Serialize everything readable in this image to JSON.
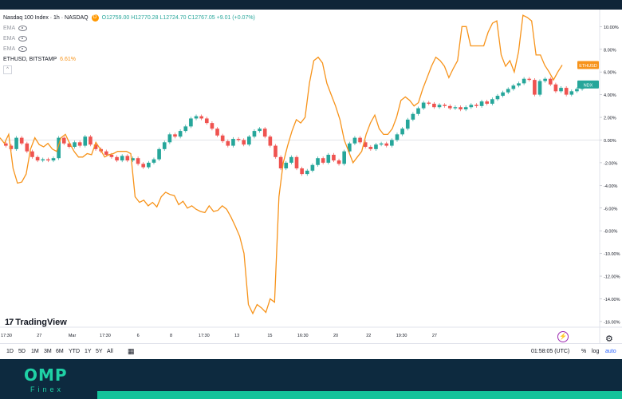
{
  "legend": {
    "title": "Nasdaq 100 Index · 1h · NASDAQ",
    "badge": "D",
    "ohlc": "O12759.00 H12770.28 L12724.70 C12767.05 +9.01 (+0.07%)",
    "ema_labels": [
      "EMA",
      "EMA",
      "EMA"
    ],
    "compare_symbol": "ETHUSD, BITSTAMP",
    "compare_value": "6.61%"
  },
  "logo": {
    "text": "TradingView",
    "mark": "17"
  },
  "price_tags": {
    "eth": "ETHUSD",
    "ndx": "NDX"
  },
  "toolbar": {
    "timeframes": [
      "1D",
      "5D",
      "1M",
      "3M",
      "6M",
      "YTD",
      "1Y",
      "5Y",
      "All"
    ],
    "time": "01:58:05 (UTC)",
    "percent": "%",
    "log": "log",
    "auto": "auto"
  },
  "footer": {
    "brand": "OMP",
    "sub": "Finex"
  },
  "colors": {
    "up": "#26a69a",
    "down": "#ef5350",
    "eth_line": "#f7931a",
    "ndx_tag": "#26a69a",
    "footer_bg": "#0d2a3f",
    "accent_bar": "#14c29a"
  },
  "chart_data": {
    "type": "line",
    "y_unit": "%",
    "ylim": [
      -16.5,
      11.5
    ],
    "y_ticks": [
      10,
      8,
      6,
      4,
      2,
      0,
      -2,
      -4,
      -6,
      -8,
      -10,
      -12,
      -14,
      -16
    ],
    "y_tick_labels": [
      "10.00%",
      "8.00%",
      "6.00%",
      "4.00%",
      "2.00%",
      "0.00%",
      "-2.00%",
      "-4.00%",
      "-6.00%",
      "-8.00%",
      "-10.00%",
      "-12.00%",
      "-14.00%",
      "-16.00%"
    ],
    "x_tick_labels": [
      "17:30",
      "27",
      "Mar",
      "17:30",
      "6",
      "8",
      "17:30",
      "13",
      "15",
      "16:30",
      "20",
      "22",
      "19:30",
      "27"
    ],
    "series": [
      {
        "name": "ETHUSD",
        "kind": "line",
        "values": [
          0.2,
          -0.3,
          0.5,
          -2.5,
          -3.8,
          -3.7,
          -3.0,
          -0.8,
          0.2,
          -0.4,
          -0.6,
          -0.3,
          -0.8,
          -1.0,
          0.2,
          0.5,
          -0.3,
          -1.0,
          -1.5,
          -1.5,
          -1.2,
          -1.3,
          -0.2,
          -0.8,
          -1.5,
          -1.3,
          -1.2,
          -1.0,
          -1.0,
          -1.0,
          -1.2,
          -5.0,
          -5.5,
          -5.3,
          -5.8,
          -5.5,
          -5.9,
          -5.0,
          -4.6,
          -4.8,
          -4.9,
          -5.7,
          -5.4,
          -6.0,
          -5.8,
          -6.1,
          -6.3,
          -6.4,
          -5.8,
          -6.3,
          -6.2,
          -5.8,
          -6.1,
          -6.8,
          -7.6,
          -8.5,
          -10.0,
          -14.5,
          -15.3,
          -14.5,
          -14.8,
          -15.2,
          -14.0,
          -14.3,
          -5.0,
          -2.0,
          -0.5,
          0.8,
          1.8,
          1.5,
          2.0,
          5.0,
          7.0,
          7.3,
          6.8,
          5.0,
          4.0,
          3.0,
          1.8,
          0.0,
          -1.0,
          -2.0,
          -1.5,
          -1.0,
          0.5,
          1.5,
          2.2,
          1.0,
          0.5,
          0.5,
          1.0,
          2.0,
          3.5,
          3.8,
          3.5,
          3.0,
          3.3,
          4.5,
          5.5,
          6.5,
          7.3,
          7.0,
          6.5,
          5.5,
          6.3,
          7.0,
          10.0,
          10.0,
          8.3,
          8.3,
          8.3,
          8.3,
          9.5,
          10.3,
          10.5,
          7.5,
          6.5,
          7.0,
          6.0,
          7.8,
          11.0,
          10.8,
          10.5,
          7.5,
          7.5,
          6.6,
          6.0,
          5.3,
          6.0,
          6.61
        ]
      },
      {
        "name": "NDX",
        "kind": "candles",
        "closes": [
          -0.5,
          -0.8,
          0.2,
          -0.3,
          -1.0,
          -1.5,
          -1.8,
          -1.7,
          -1.8,
          -1.6,
          0.2,
          -0.3,
          -0.6,
          -0.2,
          -0.5,
          0.3,
          -0.4,
          -0.8,
          -1.0,
          -1.3,
          -1.5,
          -1.8,
          -1.4,
          -1.8,
          -1.6,
          -2.1,
          -2.4,
          -2.0,
          -1.7,
          -0.8,
          -0.2,
          0.5,
          0.3,
          0.8,
          1.2,
          1.9,
          2.1,
          1.9,
          1.5,
          1.0,
          0.4,
          -0.1,
          -0.5,
          0.1,
          0.0,
          -0.4,
          0.3,
          0.8,
          1.0,
          0.3,
          -0.5,
          -1.5,
          -2.5,
          -2.0,
          -1.5,
          -2.5,
          -3.0,
          -2.7,
          -2.2,
          -1.6,
          -2.0,
          -1.3,
          -1.8,
          -2.1,
          -1.0,
          -0.3,
          0.2,
          -0.2,
          -0.6,
          -0.8,
          -0.4,
          -0.3,
          -0.5,
          0.0,
          0.5,
          1.0,
          1.8,
          2.3,
          2.8,
          3.3,
          3.2,
          2.9,
          3.1,
          3.0,
          2.8,
          2.9,
          2.7,
          2.9,
          3.1,
          3.0,
          3.4,
          3.2,
          3.6,
          3.9,
          4.2,
          4.5,
          4.8,
          5.0,
          5.4,
          5.3,
          4.0,
          5.2,
          5.4,
          4.9,
          4.3,
          4.6,
          4.0,
          4.3,
          4.5,
          4.7,
          4.9
        ]
      }
    ],
    "last_values": {
      "ETHUSD": 6.61,
      "NDX": 4.9
    }
  }
}
